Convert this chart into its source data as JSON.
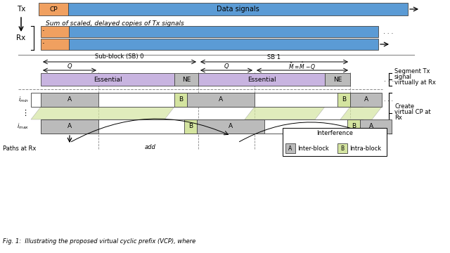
{
  "fig_width": 6.4,
  "fig_height": 3.6,
  "bg_color": "#ffffff",
  "orange_color": "#F0A060",
  "blue_color": "#5B9BD5",
  "purple_color": "#C8B4E0",
  "green_color": "#D4E4A0",
  "lgray_color": "#BBBBBB",
  "white_color": "#FFFFFF",
  "tx_label": "Tx",
  "rx_label": "Rx",
  "cp_label": "CP",
  "data_signals_label": "Data signals",
  "channel_desc": "Sum of scaled, delayed copies of Tx signals",
  "sub_block_label": "Sub-block (SB) 0",
  "sb1_label": "SB 1",
  "essential_label": "Essential",
  "ne_label": "NE",
  "paths_label": "Paths at Rx",
  "add_label": "add",
  "segment_label": "Segment Tx\nsignal\nvirtually at Rx",
  "create_label": "Create\nvirtual CP at\nRx",
  "interference_label": "Interference",
  "inter_block_label": "Inter-block",
  "intra_block_label": "Intra-block",
  "caption": "Fig. 1:  Illustrating the proposed virtual cyclic prefix (VCP), where"
}
